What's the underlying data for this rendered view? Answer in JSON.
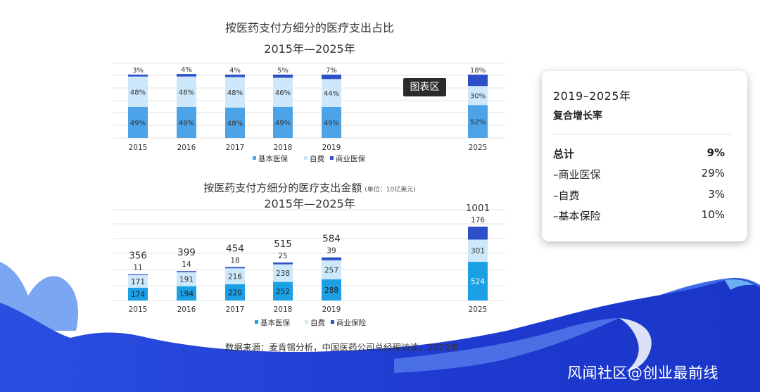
{
  "chart1": {
    "title_line1": "按医药支付方细分的医疗支出占比",
    "title_line2": "2015年—2025年"
  },
  "chart2": {
    "title_line1": "按医药支付方细分的医疗支出金额",
    "unit": "(单位：10亿美元)",
    "title_line2": "2015年—2025年"
  },
  "tooltip": "图表区",
  "source": "数据来源：麦肯锡分析，中国医药公司总经理访谈，2020年",
  "watermark": "风闻社区@创业最前线",
  "cagr_card": {
    "title": "2019–2025年",
    "subtitle": "复合增长率",
    "rows": [
      {
        "label": "总计",
        "value": "9%"
      },
      {
        "label": "–商业医保",
        "value": "29%"
      },
      {
        "label": "–自费",
        "value": "3%"
      },
      {
        "label": "–基本保险",
        "value": "10%"
      }
    ]
  },
  "colors": {
    "basic": "#4da3e8",
    "self_pay": "#cde8fa",
    "commercial": "#2d4fc8",
    "basic_amount": "#1ba0e6",
    "wave_dark": "#1f3fd8",
    "wave_light": "#6f9bf0"
  },
  "chart_data": [
    {
      "type": "bar",
      "stacked": true,
      "percent": true,
      "categories": [
        "2015",
        "2016",
        "2017",
        "2018",
        "2019",
        "2025"
      ],
      "series": [
        {
          "name": "基本医保",
          "values": [
            49,
            49,
            48,
            49,
            49,
            52
          ],
          "labels": [
            "49%",
            "49%",
            "48%",
            "49%",
            "49%",
            "52%"
          ]
        },
        {
          "name": "自费",
          "values": [
            48,
            48,
            48,
            46,
            44,
            30
          ],
          "labels": [
            "48%",
            "48%",
            "48%",
            "46%",
            "44%",
            "30%"
          ]
        },
        {
          "name": "商业医保",
          "values": [
            3,
            4,
            4,
            5,
            7,
            18
          ],
          "labels": [
            "3%",
            "4%",
            "4%",
            "5%",
            "7%",
            "18%"
          ]
        }
      ],
      "ylim": [
        0,
        100
      ],
      "grid": true,
      "legend": "bottom"
    },
    {
      "type": "bar",
      "stacked": true,
      "categories": [
        "2015",
        "2016",
        "2017",
        "2018",
        "2019",
        "2025"
      ],
      "series": [
        {
          "name": "基本医保",
          "values": [
            174,
            194,
            220,
            252,
            288,
            524
          ]
        },
        {
          "name": "自费",
          "values": [
            171,
            191,
            216,
            238,
            257,
            301
          ]
        },
        {
          "name": "商业保险",
          "values": [
            11,
            14,
            18,
            25,
            39,
            176
          ]
        }
      ],
      "totals": [
        356,
        399,
        454,
        515,
        584,
        1001
      ],
      "ylim": [
        0,
        1050
      ],
      "grid": true,
      "legend": "bottom"
    }
  ]
}
